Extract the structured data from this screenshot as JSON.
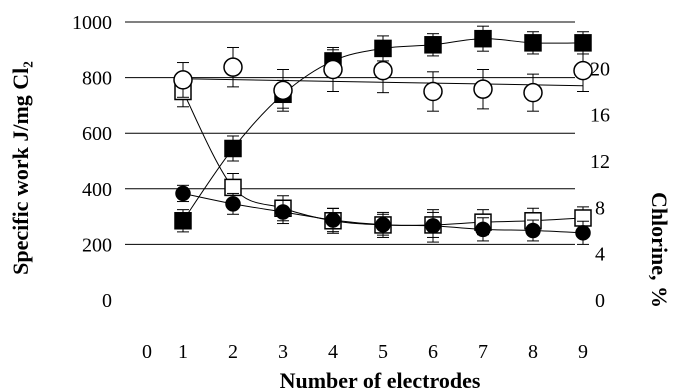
{
  "chart_data": {
    "type": "scatter",
    "xlabel": "Number of electrodes",
    "ylabel_left": "Specific work J/mg Cl₂",
    "ylabel_right": "Chlorine, %",
    "x_ticks": [
      "0",
      "1",
      "2",
      "3",
      "4",
      "5",
      "6",
      "7",
      "8",
      "9"
    ],
    "y_left_ticks": [
      "0",
      "200",
      "400",
      "600",
      "800",
      "1000"
    ],
    "y_right_ticks": [
      "0",
      "4",
      "8",
      "12",
      "16",
      "20"
    ],
    "xlim": [
      0,
      9.5
    ],
    "ylim_left": [
      0,
      1000
    ],
    "ylim_right": [
      0,
      24
    ],
    "grid": "horizontal",
    "series": [
      {
        "axis": "left",
        "marker": "square",
        "filled": true,
        "x": [
          1,
          2,
          3,
          4,
          5,
          6,
          7,
          8,
          9
        ],
        "values": [
          285,
          545,
          740,
          860,
          905,
          918,
          940,
          925,
          925
        ],
        "errors": [
          40,
          45,
          50,
          40,
          45,
          40,
          45,
          40,
          40
        ]
      },
      {
        "axis": "left",
        "marker": "square",
        "filled": false,
        "x": [
          1,
          2,
          3,
          4,
          5,
          6,
          7,
          8,
          9
        ],
        "values": [
          750,
          405,
          330,
          285,
          270,
          270,
          280,
          285,
          295
        ],
        "errors": [
          55,
          50,
          45,
          45,
          45,
          45,
          45,
          45,
          40
        ]
      },
      {
        "axis": "right",
        "marker": "circle",
        "filled": false,
        "x": [
          1,
          2,
          3,
          4,
          5,
          6,
          7,
          8,
          9
        ],
        "values": [
          19.0,
          20.1,
          18.1,
          19.9,
          19.8,
          18.0,
          18.2,
          17.9,
          19.8
        ],
        "errors": [
          1.5,
          1.7,
          1.8,
          1.9,
          1.9,
          1.7,
          1.7,
          1.6,
          1.8
        ]
      },
      {
        "axis": "right",
        "marker": "circle",
        "filled": true,
        "x": [
          1,
          2,
          3,
          4,
          5,
          6,
          7,
          8,
          9
        ],
        "values": [
          9.2,
          8.3,
          7.6,
          6.9,
          6.5,
          6.4,
          6.1,
          6.0,
          5.8
        ],
        "errors": [
          0.7,
          0.9,
          1.0,
          1.0,
          0.9,
          1.4,
          1.0,
          0.9,
          1.0
        ]
      }
    ]
  }
}
